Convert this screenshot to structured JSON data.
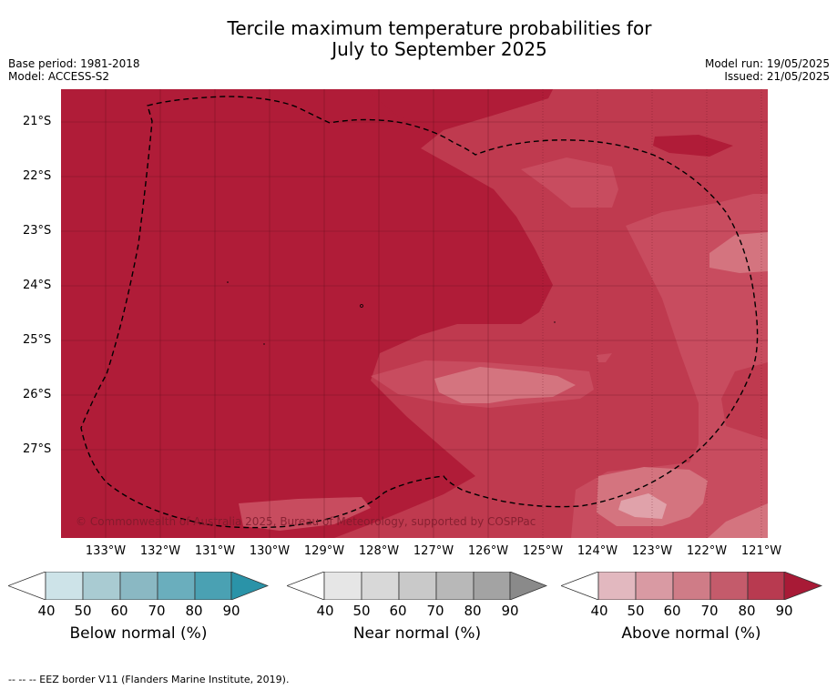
{
  "title": {
    "line1": "Tercile maximum temperature probabilities for",
    "line2": "July to September 2025"
  },
  "meta_left": {
    "base_period": "Base period: 1981-2018",
    "model": "Model: ACCESS-S2"
  },
  "meta_right": {
    "model_run": "Model run: 19/05/2025",
    "issued": "Issued: 21/05/2025"
  },
  "map": {
    "lat_labels": [
      "21°S",
      "22°S",
      "23°S",
      "24°S",
      "25°S",
      "26°S",
      "27°S"
    ],
    "lon_labels": [
      "133°W",
      "132°W",
      "131°W",
      "130°W",
      "129°W",
      "128°W",
      "127°W",
      "126°W",
      "125°W",
      "124°W",
      "123°W",
      "122°W",
      "121°W"
    ],
    "copyright": "© Commonwealth of Australia 2025, Bureau of Meteorology, supported by COSPPac",
    "colors": {
      "above_90": "#b01c38",
      "above_80": "#c03a50",
      "above_70": "#c84c5e",
      "above_60": "#d26976"
    }
  },
  "colorbars": [
    {
      "label": "Below normal (%)",
      "ticks": [
        "40",
        "50",
        "60",
        "70",
        "80",
        "90"
      ],
      "colors": [
        "#ffffff",
        "#cde3e8",
        "#a9cbd2",
        "#8ab8c3",
        "#6aaebd",
        "#4aa1b3",
        "#2a93a8"
      ]
    },
    {
      "label": "Near normal (%)",
      "ticks": [
        "40",
        "50",
        "60",
        "70",
        "80",
        "90"
      ],
      "colors": [
        "#ffffff",
        "#e6e6e6",
        "#d8d8d8",
        "#c9c9c9",
        "#b8b8b8",
        "#a3a3a3",
        "#8a8a8a"
      ]
    },
    {
      "label": "Above normal (%)",
      "ticks": [
        "40",
        "50",
        "60",
        "70",
        "80",
        "90"
      ],
      "colors": [
        "#ffffff",
        "#e2b8bf",
        "#d99aa3",
        "#cf7c87",
        "#c45b6b",
        "#b83a50",
        "#a81a36"
      ]
    }
  ],
  "footer": "--  --  -- EEZ border V11 (Flanders Marine Institute, 2019)."
}
